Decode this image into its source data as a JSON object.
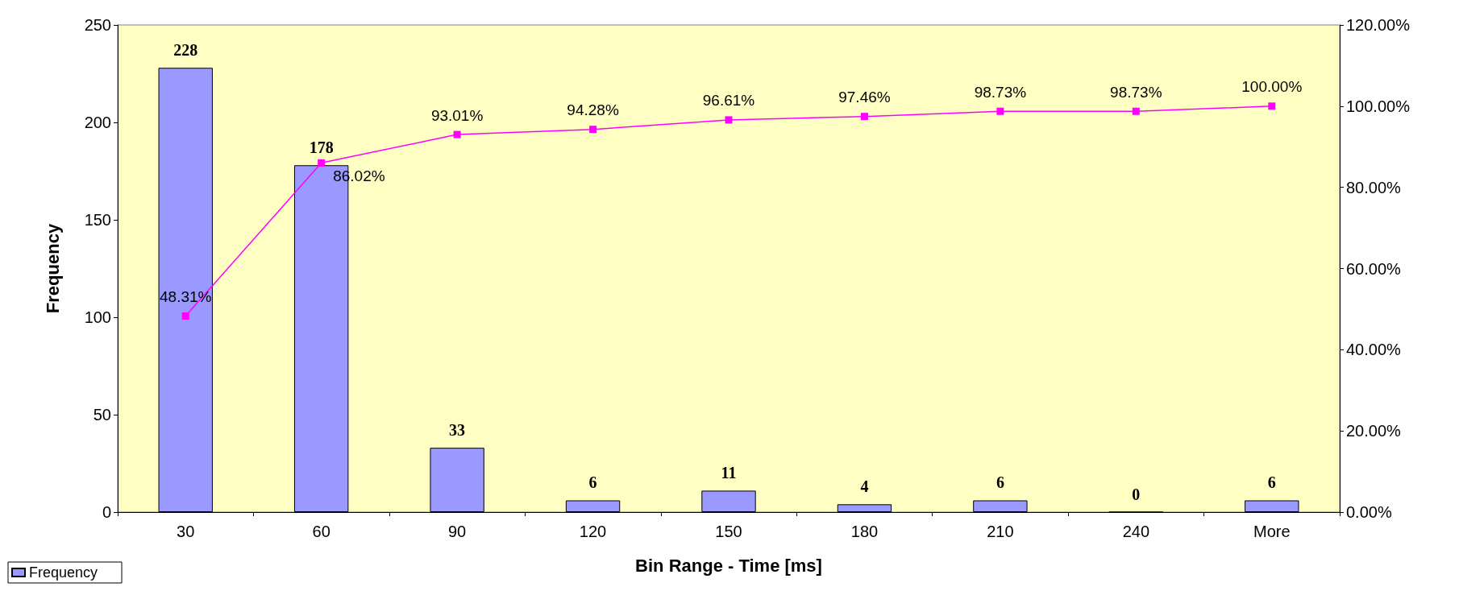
{
  "chart_data": {
    "type": "bar",
    "xlabel": "Bin Range - Time [ms]",
    "ylabel": "Frequency",
    "categories": [
      "30",
      "60",
      "90",
      "120",
      "150",
      "180",
      "210",
      "240",
      "More"
    ],
    "series": [
      {
        "name": "Frequency",
        "color": "#9999ff",
        "values": [
          228,
          178,
          33,
          6,
          11,
          4,
          6,
          0,
          6
        ],
        "value_labels": [
          "228",
          "178",
          "33",
          "6",
          "11",
          "4",
          "6",
          "0",
          "6"
        ]
      },
      {
        "type": "line",
        "axis": "y2",
        "color": "#ff00ff",
        "values": [
          48.31,
          86.02,
          93.01,
          94.28,
          96.61,
          97.46,
          98.73,
          98.73,
          100.0
        ],
        "value_labels": [
          "48.31%",
          "86.02%",
          "93.01%",
          "94.28%",
          "96.61%",
          "97.46%",
          "98.73%",
          "98.73%",
          "100.00%"
        ]
      }
    ],
    "ylim": [
      0,
      250
    ],
    "yticks": [
      0,
      50,
      100,
      150,
      200,
      250
    ],
    "y2lim": [
      0,
      120
    ],
    "y2ticks": [
      {
        "value": 0,
        "label": "0.00%"
      },
      {
        "value": 20,
        "label": "20.00%"
      },
      {
        "value": 40,
        "label": "40.00%"
      },
      {
        "value": 60,
        "label": "60.00%"
      },
      {
        "value": 80,
        "label": "80.00%"
      },
      {
        "value": 100,
        "label": "100.00%"
      },
      {
        "value": 120,
        "label": "120.00%"
      }
    ],
    "marker": "square",
    "line_style": "solid",
    "grid": false,
    "legend": "bottom left"
  }
}
